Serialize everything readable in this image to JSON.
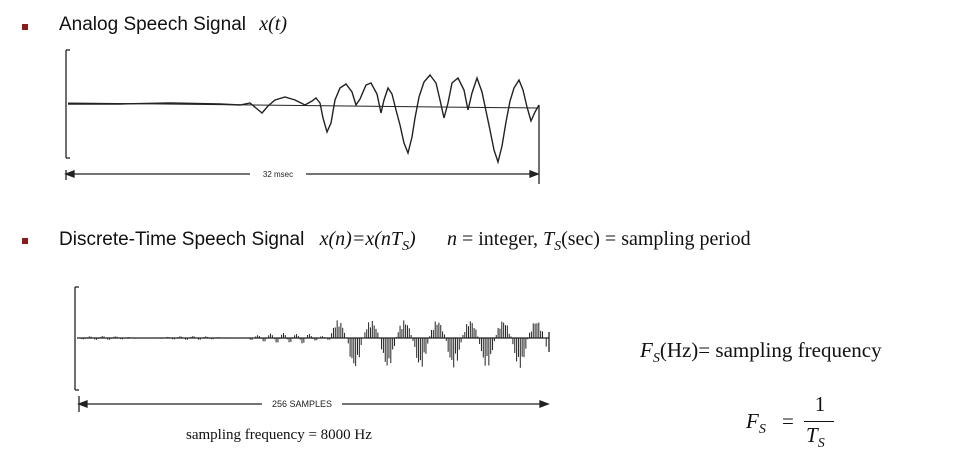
{
  "bullets": {
    "analog": {
      "label": "Analog Speech Signal",
      "math": "x(t)"
    },
    "discrete": {
      "label": "Discrete-Time Speech Signal",
      "math_lhs": "x(n)=x(nT",
      "math_sub": "S",
      "math_close": ")",
      "integer_note_n": "n",
      "integer_note": " = integer, ",
      "ts_T": "T",
      "ts_sub": "S",
      "ts_rest": "(sec) = sampling period"
    }
  },
  "analog_plot": {
    "duration_label": "32 msec"
  },
  "discrete_plot": {
    "samples_label": "256 SAMPLES",
    "caption": "sampling frequency = 8000 Hz"
  },
  "formulas": {
    "fs_F": "F",
    "fs_sub": "S",
    "fs_def": "(Hz)= sampling frequency",
    "eq_numerator": "1",
    "eq_den_T": "T",
    "eq_den_sub": "S",
    "eq_sign": "="
  },
  "colors": {
    "bullet": "#8b1a1a",
    "trace": "#222222"
  }
}
